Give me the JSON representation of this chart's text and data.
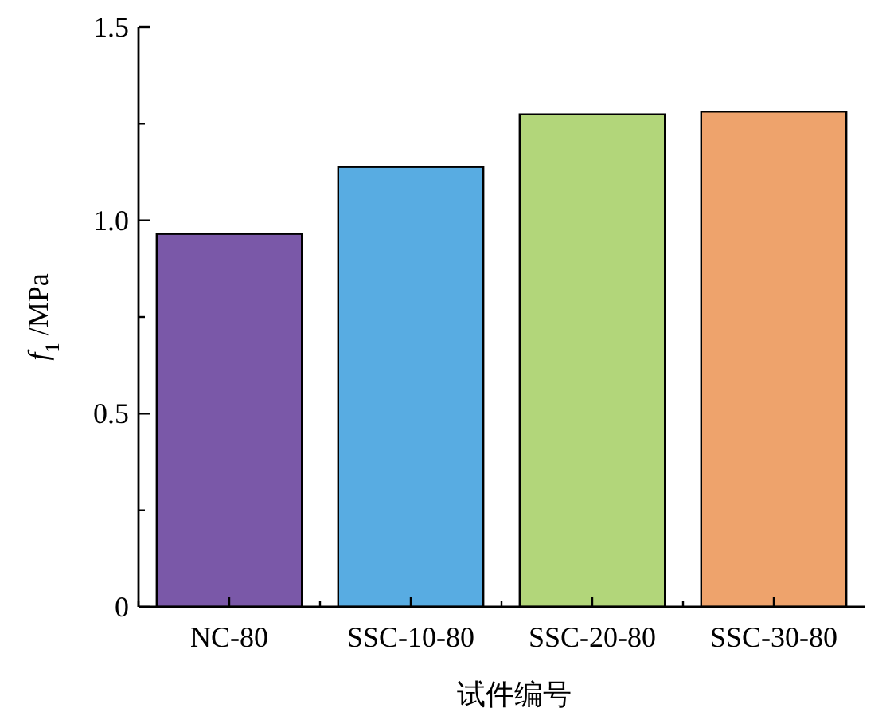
{
  "chart_data": {
    "type": "bar",
    "xlabel": "试件编号",
    "ylabel": "*f*$_{1}$ /MPa",
    "categories": [
      "NC-80",
      "SSC-10-80",
      "SSC-20-80",
      "SSC-30-80"
    ],
    "values": [
      0.965,
      1.138,
      1.274,
      1.281
    ],
    "colors": [
      "#7a58a8",
      "#58ace2",
      "#b2d67a",
      "#eea36c"
    ],
    "ylim": [
      0,
      1.5
    ],
    "yticks": [
      0,
      {
        "value": 0.25,
        "label": null
      },
      0.5,
      {
        "value": 0.75,
        "label": null
      },
      {
        "value": 1.0,
        "label": "1.0"
      },
      {
        "value": 1.25,
        "label": null
      },
      1.5
    ],
    "grid": false
  }
}
